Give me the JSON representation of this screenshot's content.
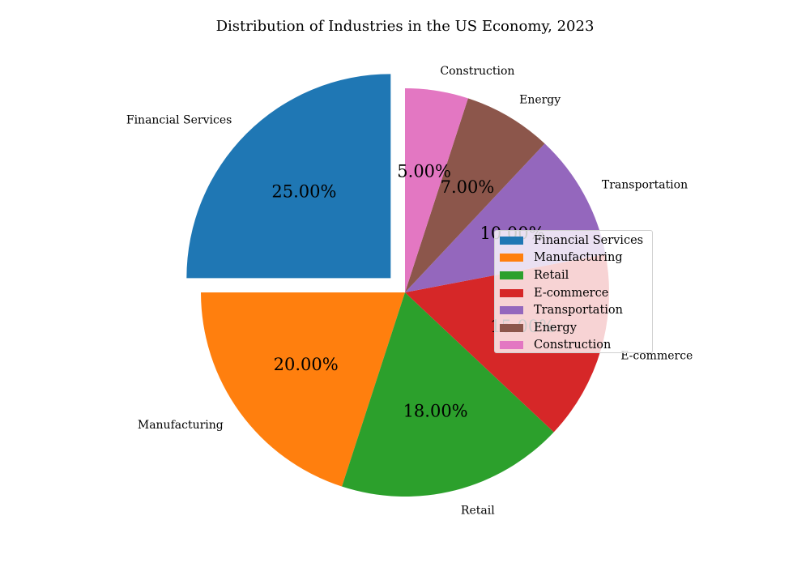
{
  "chart_data": {
    "type": "pie",
    "title": "Distribution of Industries in the US Economy, 2023",
    "categories": [
      "Financial Services",
      "Manufacturing",
      "Retail",
      "E-commerce",
      "Transportation",
      "Energy",
      "Construction"
    ],
    "values": [
      25,
      20,
      18,
      15,
      10,
      7,
      5
    ],
    "percent_labels": [
      "25.00%",
      "20.00%",
      "18.00%",
      "15.00%",
      "10.00%",
      "7.00%",
      "5.00%"
    ],
    "colors": [
      "#1f77b4",
      "#ff7f0e",
      "#2ca02c",
      "#d62728",
      "#9467bd",
      "#8c564b",
      "#e377c2"
    ],
    "exploded": [
      "Financial Services"
    ],
    "start_angle_deg": 90,
    "direction": "counterclockwise",
    "legend": {
      "placement": "right",
      "entries": [
        "Financial Services",
        "Manufacturing",
        "Retail",
        "E-commerce",
        "Transportation",
        "Energy",
        "Construction"
      ]
    }
  }
}
